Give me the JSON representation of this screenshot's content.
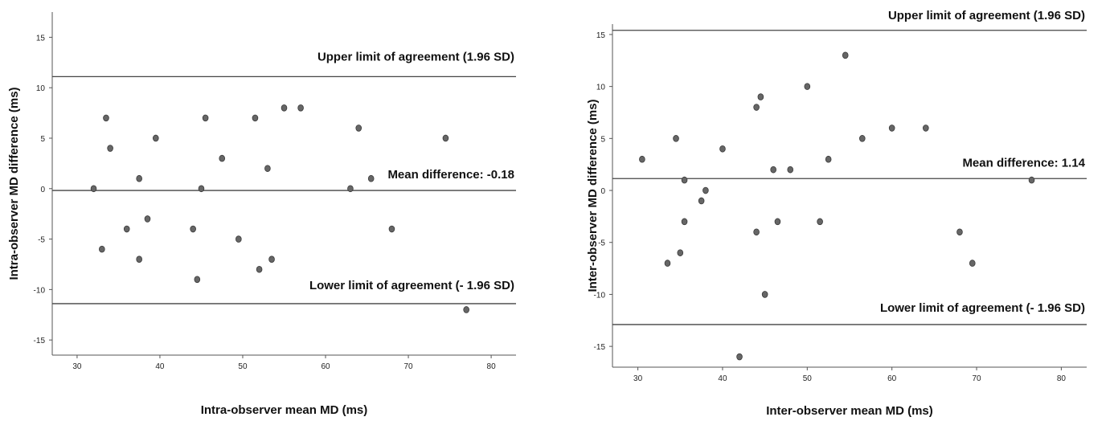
{
  "chart_data": [
    {
      "type": "scatter",
      "xlabel": "Intra-observer  mean MD (ms)",
      "ylabel": "Intra-observer  MD difference (ms)",
      "xlim": [
        27,
        83
      ],
      "ylim": [
        -16.5,
        17.5
      ],
      "xticks": [
        30,
        40,
        50,
        60,
        70,
        80
      ],
      "yticks": [
        15,
        10,
        5,
        0,
        -5,
        -10,
        -15
      ],
      "grid": false,
      "series": [
        {
          "x": [
            32,
            33,
            33.5,
            34,
            36,
            37.5,
            37.5,
            38.5,
            39.5,
            44,
            44.5,
            45,
            45.5,
            47.5,
            49.5,
            51.5,
            52,
            53,
            53.5,
            55,
            57,
            63,
            64,
            65.5,
            68,
            74.5,
            77
          ],
          "y": [
            0,
            -6,
            7,
            4,
            -4,
            1,
            -7,
            -3,
            5,
            -4,
            -9,
            0,
            7,
            3,
            -5,
            7,
            -8,
            2,
            -7,
            8,
            8,
            0,
            6,
            1,
            -4,
            5,
            -12
          ],
          "color": "#666666"
        }
      ],
      "reference_lines": [
        {
          "y": 11.1,
          "label": "Upper limit of agreement (1.96 SD)"
        },
        {
          "y": -0.18,
          "label": "Mean difference: -0.18"
        },
        {
          "y": -11.4,
          "label": "Lower limit of agreement (- 1.96 SD)"
        }
      ]
    },
    {
      "type": "scatter",
      "xlabel": "Inter-observer  mean MD (ms)",
      "ylabel": "Inter-observer  MD difference (ms)",
      "xlim": [
        27,
        83
      ],
      "ylim": [
        -17,
        16
      ],
      "xticks": [
        30,
        40,
        50,
        60,
        70,
        80
      ],
      "yticks": [
        15,
        10,
        5,
        0,
        -5,
        -10,
        -15
      ],
      "grid": false,
      "series": [
        {
          "x": [
            30.5,
            33.5,
            34.5,
            35,
            35.5,
            35.5,
            37.5,
            38,
            40,
            44,
            44,
            44.5,
            45,
            46,
            46.5,
            48,
            50,
            51.5,
            52.5,
            54.5,
            56.5,
            60,
            64,
            68,
            69.5,
            76.5,
            42
          ],
          "y": [
            3,
            -7,
            5,
            -6,
            1,
            -3,
            -1,
            0,
            4,
            8,
            -4,
            9,
            -10,
            2,
            -3,
            2,
            10,
            -3,
            3,
            13,
            5,
            6,
            6,
            -4,
            -7,
            1,
            -16
          ],
          "color": "#666666"
        }
      ],
      "reference_lines": [
        {
          "y": 15.4,
          "label": "Upper limit of agreement (1.96 SD)"
        },
        {
          "y": 1.14,
          "label": "Mean difference: 1.14"
        },
        {
          "y": -12.9,
          "label": "Lower limit of agreement (- 1.96 SD)"
        }
      ]
    }
  ]
}
